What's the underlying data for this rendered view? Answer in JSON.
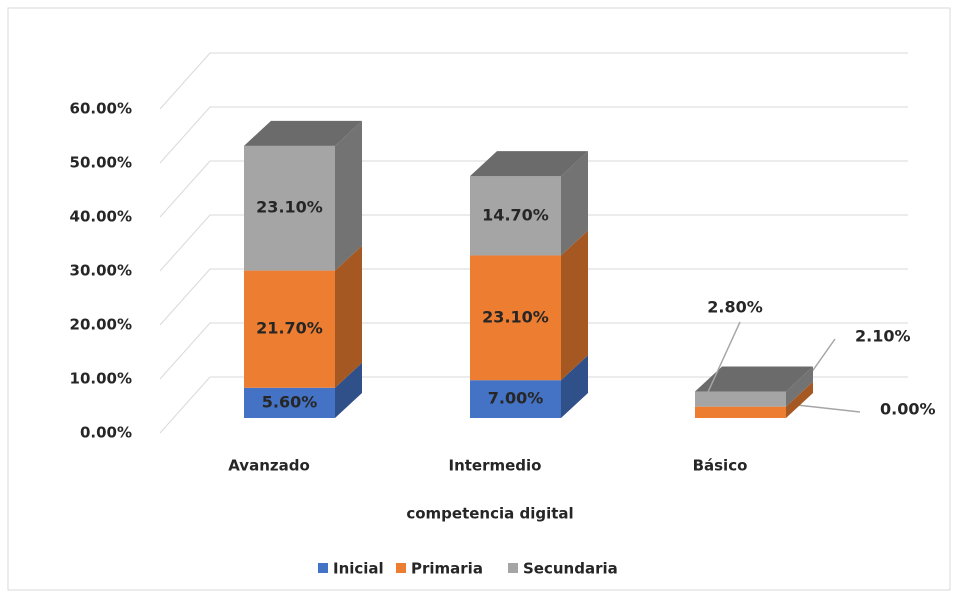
{
  "chart_data": {
    "type": "bar3d_stacked",
    "categories": [
      "Avanzado",
      "Intermedio",
      "Básico"
    ],
    "xlabel": "competencia digital",
    "series": [
      {
        "name": "Inicial",
        "color": "#4472c4",
        "values": [
          5.6,
          7.0,
          0.0
        ],
        "value_labels": [
          "5.60%",
          "7.00%",
          "0.00%"
        ]
      },
      {
        "name": "Primaria",
        "color": "#ed7d31",
        "values": [
          21.7,
          23.1,
          2.1
        ],
        "value_labels": [
          "21.70%",
          "23.10%",
          "2.10%"
        ]
      },
      {
        "name": "Secundaria",
        "color": "#a5a5a5",
        "values": [
          23.1,
          14.7,
          2.8
        ],
        "value_labels": [
          "23.10%",
          "14.70%",
          "2.80%"
        ]
      }
    ],
    "ylim": [
      0,
      60
    ],
    "yticks": [
      {
        "value": 0,
        "label": "0.00%"
      },
      {
        "value": 10,
        "label": "10.00%"
      },
      {
        "value": 20,
        "label": "20.00%"
      },
      {
        "value": 30,
        "label": "30.00%"
      },
      {
        "value": 40,
        "label": "40.00%"
      },
      {
        "value": 50,
        "label": "50.00%"
      },
      {
        "value": 60,
        "label": "60.00%"
      }
    ],
    "grid": true,
    "legend": "bottom"
  }
}
